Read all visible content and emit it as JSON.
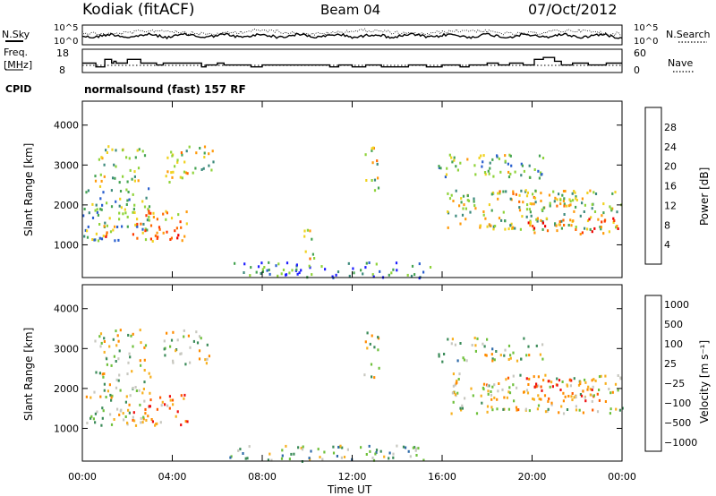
{
  "header": {
    "station": "Kodiak (fitACF)",
    "beam": "Beam 04",
    "date": "07/Oct/2012"
  },
  "sky_panel": {
    "left_label": "N.Sky",
    "right_label": "N.Search",
    "left_ticks": [
      "10^5",
      "10^0"
    ],
    "right_ticks": [
      "10^5",
      "10^0"
    ]
  },
  "freq_panel": {
    "left_label_line1": "Freq.",
    "left_label_line2": "[MHz]",
    "right_label": "Nave",
    "left_ticks": [
      "18",
      "8"
    ],
    "right_ticks": [
      "60",
      "0"
    ],
    "freq_steps": [
      [
        0.0,
        13
      ],
      [
        0.6,
        11
      ],
      [
        1.0,
        15
      ],
      [
        1.3,
        13
      ],
      [
        1.4,
        14
      ],
      [
        1.5,
        13
      ],
      [
        2.0,
        15
      ],
      [
        2.6,
        13
      ],
      [
        3.3,
        12
      ],
      [
        3.6,
        13
      ],
      [
        5.3,
        11
      ],
      [
        5.5,
        12
      ],
      [
        6.0,
        13
      ],
      [
        6.3,
        12
      ],
      [
        7.5,
        11
      ],
      [
        8.0,
        12
      ],
      [
        11.0,
        11
      ],
      [
        11.4,
        12
      ],
      [
        12.0,
        11
      ],
      [
        12.6,
        12
      ],
      [
        13.3,
        11
      ],
      [
        14.5,
        12
      ],
      [
        15.3,
        11
      ],
      [
        16.0,
        12
      ],
      [
        16.8,
        11
      ],
      [
        17.2,
        12
      ],
      [
        18.0,
        13
      ],
      [
        18.5,
        12
      ],
      [
        19.0,
        13
      ],
      [
        19.6,
        12
      ],
      [
        20.1,
        15
      ],
      [
        20.5,
        16
      ],
      [
        21.0,
        14
      ],
      [
        21.3,
        12
      ],
      [
        21.8,
        13
      ],
      [
        22.5,
        12
      ],
      [
        23.3,
        13
      ],
      [
        24.0,
        13
      ]
    ]
  },
  "cpid": {
    "label": "CPID",
    "text": "normalsound (fast) 157 RF"
  },
  "chart_data": [
    {
      "type": "heatmap",
      "name": "power",
      "ylabel": "Slant Range [km]",
      "xlabel": "Time UT",
      "xlim": [
        0,
        24
      ],
      "ylim": [
        180,
        4600
      ],
      "y_ticks": [
        "1000",
        "2000",
        "3000",
        "4000"
      ],
      "x_ticks": [
        "00:00",
        "04:00",
        "08:00",
        "12:00",
        "16:00",
        "20:00",
        "00:00"
      ],
      "colorbar": {
        "title": "Power [dB]",
        "tick_labels": [
          "4",
          "8",
          "12",
          "16",
          "20",
          "24",
          "28"
        ],
        "colors": [
          "#1e1eff",
          "#2a5fcf",
          "#3c8a7c",
          "#45a452",
          "#8fd33a",
          "#f0d21e",
          "#ff9a0a",
          "#ff6a00",
          "#ff3a00",
          "#ee0000"
        ]
      },
      "echo_regions": [
        {
          "t": [
            0.0,
            3.0
          ],
          "r": [
            1100,
            2500
          ],
          "level": 0.35
        },
        {
          "t": [
            2.2,
            4.7
          ],
          "r": [
            1100,
            1900
          ],
          "level": 0.65
        },
        {
          "t": [
            3.3,
            4.3
          ],
          "r": [
            1200,
            1500
          ],
          "level": 0.9
        },
        {
          "t": [
            0.5,
            2.8
          ],
          "r": [
            2600,
            3500
          ],
          "level": 0.45
        },
        {
          "t": [
            3.6,
            5.8
          ],
          "r": [
            2600,
            3500
          ],
          "level": 0.5
        },
        {
          "t": [
            0.8,
            1.6
          ],
          "r": [
            1200,
            1500
          ],
          "level": 0.7
        },
        {
          "t": [
            16.2,
            24.0
          ],
          "r": [
            1400,
            2400
          ],
          "level": 0.45
        },
        {
          "t": [
            19.5,
            23.8
          ],
          "r": [
            1300,
            1700
          ],
          "level": 0.75
        },
        {
          "t": [
            18.0,
            22.8
          ],
          "r": [
            2000,
            2400
          ],
          "level": 0.5
        },
        {
          "t": [
            15.8,
            20.5
          ],
          "r": [
            2700,
            3300
          ],
          "level": 0.4
        },
        {
          "t": [
            6.5,
            15.5
          ],
          "r": [
            200,
            600
          ],
          "level": 0.25
        },
        {
          "t": [
            12.5,
            13.2
          ],
          "r": [
            2300,
            3500
          ],
          "level": 0.5
        },
        {
          "t": [
            9.8,
            10.3
          ],
          "r": [
            600,
            1400
          ],
          "level": 0.55
        }
      ]
    },
    {
      "type": "heatmap",
      "name": "velocity",
      "ylabel": "Slant Range [km]",
      "xlabel": "Time UT",
      "xlim": [
        0,
        24
      ],
      "ylim": [
        180,
        4600
      ],
      "y_ticks": [
        "1000",
        "2000",
        "3000",
        "4000"
      ],
      "x_ticks": [
        "00:00",
        "04:00",
        "08:00",
        "12:00",
        "16:00",
        "20:00",
        "00:00"
      ],
      "colorbar": {
        "title": "Velocity [m s⁻¹]",
        "tick_labels": [
          "1000",
          "500",
          "100",
          "25",
          "−25",
          "−100",
          "−500",
          "−1000"
        ],
        "colors": [
          "#1e28c8",
          "#2e6aa8",
          "#3c8c5a",
          "#6fc03c",
          "#c8c8c0",
          "#f7b020",
          "#ff8c00",
          "#ff5a00",
          "#ee1010"
        ]
      },
      "echo_regions": [
        {
          "t": [
            0.0,
            3.0
          ],
          "r": [
            1100,
            2500
          ],
          "level": 0.5
        },
        {
          "t": [
            2.2,
            4.7
          ],
          "r": [
            1100,
            1900
          ],
          "level": 0.75
        },
        {
          "t": [
            0.5,
            2.8
          ],
          "r": [
            2600,
            3500
          ],
          "level": 0.5
        },
        {
          "t": [
            3.6,
            5.8
          ],
          "r": [
            2600,
            3500
          ],
          "level": 0.5
        },
        {
          "t": [
            16.2,
            24.0
          ],
          "r": [
            1400,
            2400
          ],
          "level": 0.55
        },
        {
          "t": [
            19.5,
            23.0
          ],
          "r": [
            1700,
            2300
          ],
          "level": 0.8
        },
        {
          "t": [
            15.8,
            20.5
          ],
          "r": [
            2700,
            3300
          ],
          "level": 0.45
        },
        {
          "t": [
            6.5,
            15.5
          ],
          "r": [
            200,
            600
          ],
          "level": 0.35
        },
        {
          "t": [
            12.5,
            13.2
          ],
          "r": [
            2300,
            3500
          ],
          "level": 0.5
        }
      ]
    }
  ]
}
